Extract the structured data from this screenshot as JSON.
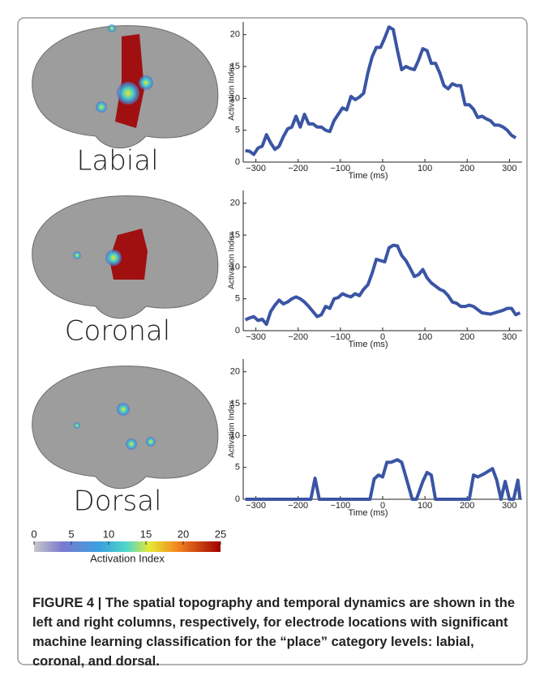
{
  "chart_data": [
    {
      "type": "line",
      "xlabel": "Time (ms)",
      "ylabel": "Activation Index",
      "xlim": [
        -330,
        330
      ],
      "ylim": [
        0,
        22
      ],
      "xticks": [
        {
          "value": -300,
          "label": "−300"
        },
        {
          "value": -200,
          "label": "−200"
        },
        {
          "value": -100,
          "label": "−100"
        },
        0,
        100,
        200,
        300
      ],
      "yticks": [
        0,
        5,
        10,
        15,
        20
      ],
      "x": [
        -325,
        -315,
        -305,
        -295,
        -285,
        -275,
        -265,
        -255,
        -245,
        -235,
        -225,
        -215,
        -205,
        -195,
        -185,
        -175,
        -165,
        -155,
        -145,
        -135,
        -125,
        -115,
        -105,
        -95,
        -85,
        -75,
        -65,
        -55,
        -45,
        -35,
        -25,
        -15,
        -5,
        5,
        15,
        25,
        35,
        45,
        55,
        65,
        75,
        85,
        95,
        105,
        115,
        125,
        135,
        145,
        155,
        165,
        175,
        185,
        195,
        205,
        215,
        225,
        235,
        245,
        255,
        265,
        275,
        285,
        295,
        305,
        315
      ],
      "series": [
        {
          "color": "#3a55a4",
          "values": [
            1.8,
            1.7,
            1.2,
            2.2,
            2.5,
            4.3,
            3.0,
            2.0,
            2.5,
            4.0,
            5.2,
            5.5,
            7.2,
            5.5,
            7.5,
            6.0,
            6.0,
            5.5,
            5.5,
            5.0,
            4.8,
            6.5,
            7.5,
            8.5,
            8.2,
            10.3,
            9.8,
            10.2,
            10.8,
            14,
            16.5,
            18,
            18,
            19.5,
            21.2,
            20.8,
            17.5,
            14.5,
            15,
            14.7,
            14.5,
            16,
            17.8,
            17.5,
            15.5,
            15.5,
            14,
            12,
            11.5,
            12.3,
            12,
            12,
            9,
            9,
            8.3,
            7,
            7.2,
            6.8,
            6.5,
            5.8,
            5.8,
            5.5,
            5,
            4.2,
            3.8
          ]
        }
      ]
    },
    {
      "type": "line",
      "xlabel": "Time (ms)",
      "ylabel": "Activation Index",
      "xlim": [
        -330,
        330
      ],
      "ylim": [
        0,
        22
      ],
      "xticks": [
        {
          "value": -300,
          "label": "−300"
        },
        {
          "value": -200,
          "label": "−200"
        },
        {
          "value": -100,
          "label": "−100"
        },
        0,
        100,
        200,
        300
      ],
      "yticks": [
        0,
        5,
        10,
        15,
        20
      ],
      "x": [
        -325,
        -315,
        -305,
        -295,
        -285,
        -275,
        -265,
        -255,
        -245,
        -235,
        -225,
        -215,
        -205,
        -195,
        -185,
        -175,
        -165,
        -155,
        -145,
        -135,
        -125,
        -115,
        -105,
        -95,
        -85,
        -75,
        -65,
        -55,
        -45,
        -35,
        -25,
        -15,
        -5,
        5,
        15,
        25,
        35,
        45,
        55,
        65,
        75,
        85,
        95,
        105,
        115,
        125,
        135,
        145,
        155,
        165,
        175,
        185,
        195,
        205,
        215,
        225,
        235,
        245,
        255,
        265,
        275,
        285,
        295,
        305,
        315,
        325
      ],
      "series": [
        {
          "color": "#3a55a4",
          "values": [
            1.7,
            2.0,
            2.2,
            1.6,
            1.8,
            1.0,
            3.0,
            4.0,
            4.8,
            4.2,
            4.5,
            5.0,
            5.3,
            5.0,
            4.5,
            3.8,
            3.0,
            2.2,
            2.5,
            3.8,
            3.5,
            5.0,
            5.2,
            5.8,
            5.5,
            5.3,
            5.8,
            5.5,
            6.5,
            7.2,
            9,
            11.2,
            11,
            10.8,
            13,
            13.4,
            13.3,
            11.8,
            11,
            9.8,
            8.5,
            8.8,
            9.6,
            8.3,
            7.5,
            7.0,
            6.5,
            6.2,
            5.5,
            4.5,
            4.3,
            3.8,
            3.8,
            4.0,
            3.8,
            3.3,
            2.8,
            2.7,
            2.6,
            2.8,
            3.0,
            3.2,
            3.5,
            3.5,
            2.5,
            2.8
          ]
        }
      ]
    },
    {
      "type": "line",
      "xlabel": "Time (ms)",
      "ylabel": "Activation Index",
      "xlim": [
        -330,
        330
      ],
      "ylim": [
        0,
        22
      ],
      "xticks": [
        {
          "value": -300,
          "label": "−300"
        },
        {
          "value": -200,
          "label": "−200"
        },
        {
          "value": -100,
          "label": "−100"
        },
        0,
        100,
        200,
        300
      ],
      "yticks": [
        0,
        5,
        10,
        15,
        20
      ],
      "x": [
        -325,
        -170,
        -160,
        -150,
        -30,
        -20,
        -10,
        0,
        10,
        20,
        35,
        45,
        55,
        70,
        80,
        95,
        105,
        115,
        125,
        205,
        215,
        225,
        240,
        260,
        270,
        280,
        290,
        300,
        310,
        320,
        325
      ],
      "series": [
        {
          "color": "#3a55a4",
          "values": [
            0,
            0,
            3.3,
            0,
            0,
            3.2,
            3.8,
            3.5,
            5.8,
            5.8,
            6.2,
            5.8,
            3.5,
            0,
            0,
            2.8,
            4.2,
            3.8,
            0,
            0,
            3.8,
            3.5,
            4.0,
            4.8,
            3.0,
            0,
            2.8,
            0,
            0,
            3.0,
            0
          ]
        }
      ]
    }
  ],
  "brain_labels": [
    "Labial",
    "Coronal",
    "Dorsal"
  ],
  "colorbar": {
    "label": "Activation Index",
    "lim": [
      0,
      25
    ],
    "ticks": [
      0,
      5,
      10,
      15,
      20,
      25
    ]
  },
  "caption": {
    "title": "FIGURE 4 | The spatial topography and temporal dynamics are shown in the left and right columns, respectively, for electrode locations with significant machine learning classification for the “place” category levels: labial, coronal, and dorsal."
  }
}
